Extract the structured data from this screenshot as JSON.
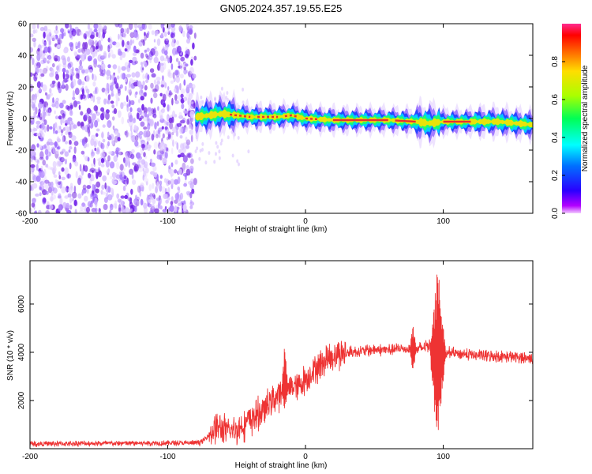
{
  "chart_data": [
    {
      "type": "heatmap",
      "title": "GN05.2024.357.19.55.E25",
      "xlabel": "Height of straight line (km)",
      "ylabel": "Frequency (Hz)",
      "xlim": [
        -200,
        165
      ],
      "ylim": [
        -60,
        60
      ],
      "xticks": [
        -200,
        -100,
        0,
        100
      ],
      "yticks": [
        60,
        40,
        20,
        0,
        -20,
        -40,
        -60
      ],
      "colorbar": {
        "label": "Normalized spectral amplitude",
        "range": [
          0,
          1
        ],
        "ticks": [
          "0.0",
          "0.2",
          "0.4",
          "0.6",
          "0.8"
        ]
      },
      "regions": [
        {
          "description": "broadband noise",
          "x_range": [
            -200,
            -80
          ],
          "freq_range": [
            -60,
            60
          ],
          "amplitude_range": [
            0.0,
            0.15
          ]
        },
        {
          "description": "narrow band near 0 Hz",
          "x_range": [
            -80,
            165
          ],
          "freq_range": [
            -5,
            5
          ],
          "amplitude_range": [
            0.2,
            1.0
          ]
        }
      ],
      "centerline": {
        "x": [
          -80,
          -70,
          -60,
          -50,
          -40,
          -30,
          -20,
          -10,
          0,
          20,
          40,
          60,
          80,
          90,
          100,
          120,
          140,
          165
        ],
        "freq": [
          1,
          2,
          3,
          2,
          1,
          1,
          1,
          2,
          0,
          -1,
          -1,
          -1,
          -2,
          -3,
          -2,
          -2,
          -2,
          -4
        ]
      }
    },
    {
      "type": "line",
      "xlabel": "Height of straight line (km)",
      "ylabel": "SNR (10 * v/v)",
      "xlim": [
        -200,
        165
      ],
      "ylim": [
        0,
        7800
      ],
      "xticks": [
        -200,
        -100,
        0,
        100
      ],
      "yticks": [
        2000,
        4000,
        6000
      ],
      "color": "#ee3333",
      "series": [
        {
          "x": [
            -200,
            -180,
            -160,
            -140,
            -120,
            -100,
            -90,
            -80,
            -75,
            -70,
            -65,
            -60,
            -55,
            -50,
            -45,
            -40,
            -35,
            -30,
            -25,
            -20,
            -15,
            -10,
            -5,
            0,
            5,
            10,
            15,
            20,
            25,
            30,
            40,
            50,
            60,
            70,
            80,
            85,
            90,
            95,
            97,
            100,
            102,
            105,
            110,
            120,
            130,
            140,
            150,
            165
          ],
          "values": [
            200,
            210,
            220,
            220,
            230,
            240,
            230,
            240,
            280,
            600,
            900,
            800,
            700,
            800,
            1000,
            1200,
            1400,
            1600,
            2000,
            2200,
            2400,
            2600,
            2600,
            2900,
            3200,
            3500,
            3700,
            3850,
            3950,
            4000,
            4050,
            4100,
            4100,
            4150,
            4100,
            4200,
            4300,
            3400,
            4200,
            3900,
            3900,
            4000,
            3950,
            3900,
            3850,
            3850,
            3800,
            3750
          ]
        }
      ],
      "peaks": [
        {
          "x": 96,
          "max": 7800,
          "min": 0
        },
        {
          "x": -15,
          "max": 4700,
          "min": 1500
        },
        {
          "x": 78,
          "max": 5300,
          "min": 3000
        }
      ]
    }
  ],
  "colors": {
    "noise": "#7a2fe0",
    "band_outer": "#8a66ff",
    "band_core": "#e83030",
    "snr_line": "#ee3333"
  }
}
